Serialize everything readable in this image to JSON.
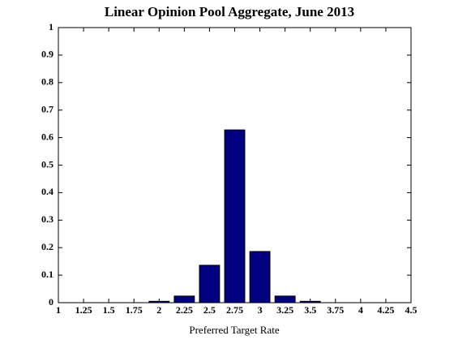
{
  "chart_data": {
    "type": "bar",
    "title": "Linear Opinion Pool Aggregate, June 2013",
    "x_label": "Preferred Target Rate",
    "x": [
      2,
      2.25,
      2.5,
      2.75,
      3,
      3.25,
      3.5
    ],
    "values": [
      0.005,
      0.024,
      0.136,
      0.628,
      0.186,
      0.024,
      0.005
    ],
    "color": "#000080",
    "xlim": [
      1,
      4.5
    ],
    "xticks": [
      1,
      1.25,
      1.5,
      1.75,
      2,
      2.25,
      2.5,
      2.75,
      3,
      3.25,
      3.5,
      3.75,
      4,
      4.25,
      4.5
    ],
    "ylim": [
      0,
      1
    ],
    "yticks": [
      0,
      0.1,
      0.2,
      0.3,
      0.4,
      0.5,
      0.6,
      0.7,
      0.8,
      0.9,
      1
    ],
    "grid": false
  }
}
